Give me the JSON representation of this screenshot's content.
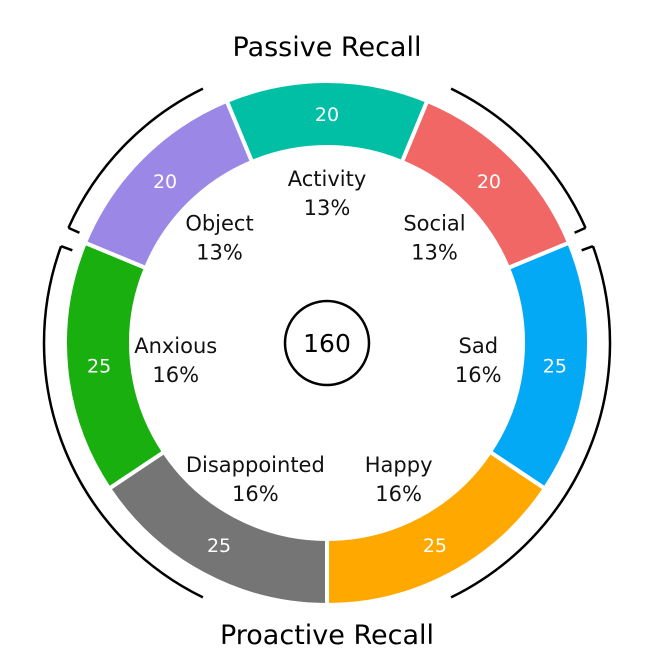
{
  "chart_data": {
    "type": "pie",
    "variant": "donut",
    "total": "160",
    "slices": [
      {
        "category": "Activity",
        "value": 20,
        "percent": "13%",
        "color": "#00BFA5"
      },
      {
        "category": "Social",
        "value": 20,
        "percent": "13%",
        "color": "#F06766"
      },
      {
        "category": "Sad",
        "value": 25,
        "percent": "16%",
        "color": "#03A9F4"
      },
      {
        "category": "Happy",
        "value": 25,
        "percent": "16%",
        "color": "#FFA800"
      },
      {
        "category": "Disappointed",
        "value": 25,
        "percent": "16%",
        "color": "#757575"
      },
      {
        "category": "Anxious",
        "value": 25,
        "percent": "16%",
        "color": "#19B00F"
      },
      {
        "category": "Object",
        "value": 20,
        "percent": "13%",
        "color": "#9B87E6"
      }
    ],
    "groups": [
      {
        "name": "Passive Recall",
        "categories": [
          "Object",
          "Activity",
          "Social"
        ]
      },
      {
        "name": "Proactive Recall",
        "categories": [
          "Sad",
          "Happy",
          "Disappointed",
          "Anxious"
        ]
      }
    ]
  }
}
